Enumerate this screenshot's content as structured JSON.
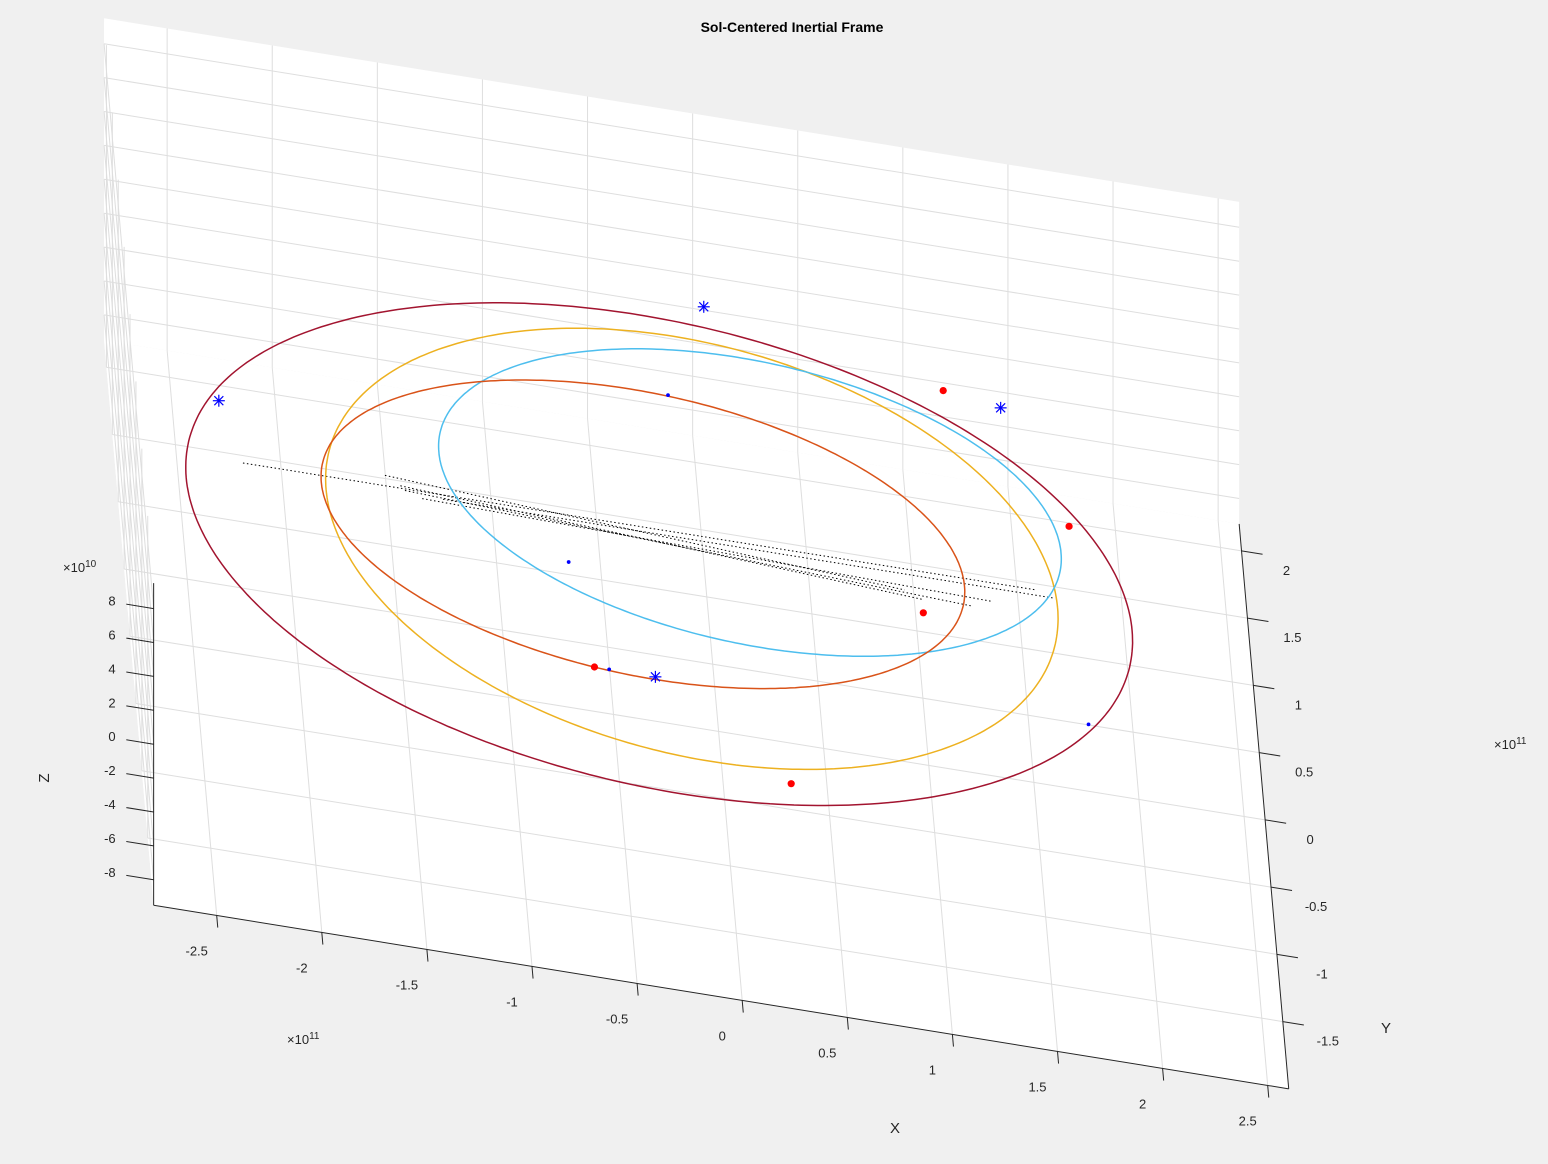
{
  "figure": {
    "background": "#f0f0f0"
  },
  "chart_data": {
    "type": "line",
    "title": "Sol-Centered Inertial Frame",
    "projection": "3d",
    "grid": true,
    "xlabel": "X",
    "ylabel": "Y",
    "zlabel": "Z",
    "x_exponent_label": "×10",
    "x_exponent_power": "11",
    "y_exponent_label": "×10",
    "y_exponent_power": "11",
    "z_exponent_label": "×10",
    "z_exponent_power": "10",
    "xlim": [
      -2.8,
      2.6
    ],
    "ylim": [
      -2.0,
      2.2
    ],
    "zlim": [
      -9.5,
      9.5
    ],
    "x_ticks": [
      -2.5,
      -2,
      -1.5,
      -1,
      -0.5,
      0,
      0.5,
      1,
      1.5,
      2,
      2.5
    ],
    "x_tick_labels": [
      "-2.5",
      "-2",
      "-1.5",
      "-1",
      "-0.5",
      "0",
      "0.5",
      "1",
      "1.5",
      "2",
      "2.5"
    ],
    "y_ticks": [
      -1.5,
      -1,
      -0.5,
      0,
      0.5,
      1,
      1.5,
      2
    ],
    "y_tick_labels": [
      "-1.5",
      "-1",
      "-0.5",
      "0",
      "0.5",
      "1",
      "1.5",
      "2"
    ],
    "z_ticks": [
      -8,
      -6,
      -4,
      -2,
      0,
      2,
      4,
      6,
      8
    ],
    "z_tick_labels": [
      "-8",
      "-6",
      "-4",
      "-2",
      "0",
      "2",
      "4",
      "6",
      "8"
    ],
    "series": [
      {
        "color": "#A2142F",
        "kind": "orbit",
        "cx": -0.28,
        "cy": 0.05,
        "a": 2.25,
        "b": 1.78,
        "rot_deg": 0
      },
      {
        "color": "#EDB120",
        "kind": "orbit",
        "cx": -0.12,
        "cy": 0.13,
        "a": 1.74,
        "b": 1.58,
        "rot_deg": 0
      },
      {
        "color": "#4DBEEE",
        "kind": "orbit",
        "cx": 0.18,
        "cy": 0.55,
        "a": 1.48,
        "b": 1.08,
        "rot_deg": 0
      },
      {
        "color": "#D95319",
        "kind": "orbit",
        "cx": -0.35,
        "cy": 0.18,
        "a": 1.53,
        "b": 1.08,
        "rot_deg": 0
      }
    ],
    "marker_sets": [
      {
        "marker": "asterisk",
        "color": "#0000FF",
        "points": [
          [
            -2.34,
            0.67
          ],
          [
            0.04,
            1.97
          ],
          [
            1.43,
            1.57
          ],
          [
            -0.35,
            -0.88
          ]
        ]
      },
      {
        "marker": "filled-circle",
        "color": "#FF0000",
        "points": [
          [
            1.16,
            1.63
          ],
          [
            1.71,
            0.76
          ],
          [
            0.97,
            -0.07
          ],
          [
            -0.64,
            -0.88
          ],
          [
            0.26,
            -1.52
          ]
        ]
      },
      {
        "marker": "dot",
        "color": "#0000FF",
        "points": [
          [
            -0.17,
            1.26
          ],
          [
            -0.72,
            -0.12
          ],
          [
            -0.57,
            -0.88
          ],
          [
            1.72,
            -0.71
          ]
        ]
      }
    ],
    "connector_lines": [
      [
        [
          -2.25,
          0.23
        ],
        [
          1.52,
          0.24
        ]
      ],
      [
        [
          -1.57,
          0.31
        ],
        [
          0.89,
          0.08
        ]
      ],
      [
        [
          -1.5,
          0.25
        ],
        [
          0.97,
          0.03
        ]
      ],
      [
        [
          -1.48,
          0.22
        ],
        [
          1.21,
          0.04
        ]
      ],
      [
        [
          -1.3,
          0.2
        ],
        [
          1.6,
          0.2
        ]
      ],
      [
        [
          -1.4,
          0.18
        ],
        [
          1.3,
          0.1
        ]
      ]
    ]
  }
}
